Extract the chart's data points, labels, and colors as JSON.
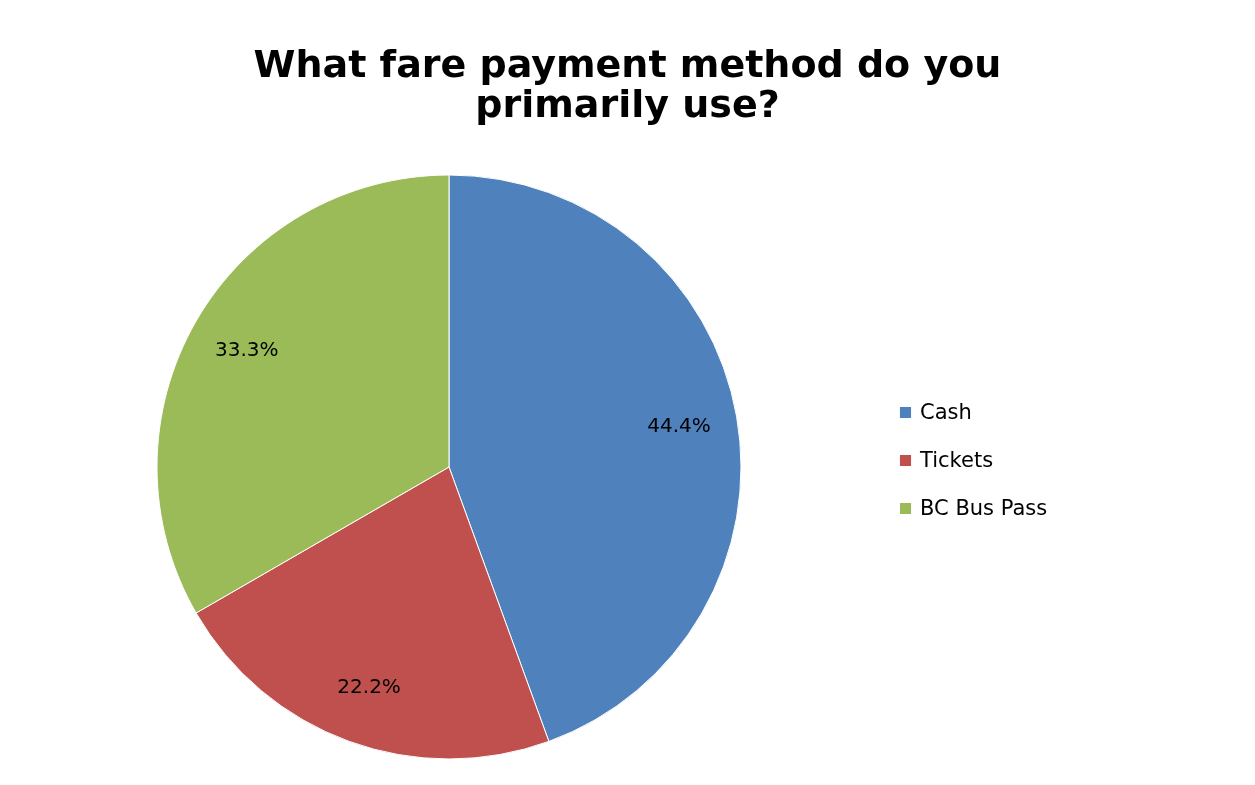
{
  "chart_data": {
    "type": "pie",
    "title": "What fare payment method do you primarily use?",
    "categories": [
      "Cash",
      "Tickets",
      "BC Bus Pass"
    ],
    "values": [
      44.4,
      22.2,
      33.3
    ],
    "colors": [
      "#4f81bd",
      "#c0504d",
      "#9bbb59"
    ],
    "value_labels": [
      "44.4%",
      "22.2%",
      "33.3%"
    ],
    "legend": "right"
  }
}
